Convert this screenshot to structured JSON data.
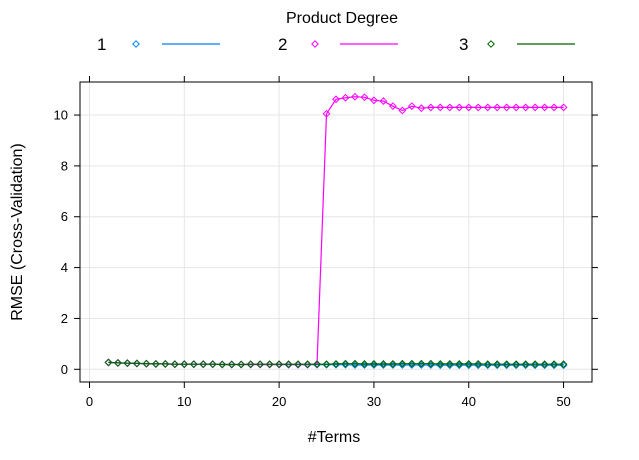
{
  "chart_data": {
    "type": "line",
    "legend_title": "Product Degree",
    "legend_position": "top",
    "xlabel": "#Terms",
    "ylabel": "RMSE (Cross-Validation)",
    "xlim": [
      -1,
      53
    ],
    "ylim": [
      -0.5,
      11.3
    ],
    "xticks": [
      0,
      10,
      20,
      30,
      40,
      50
    ],
    "yticks": [
      0,
      2,
      4,
      6,
      8,
      10
    ],
    "grid": true,
    "x": [
      2,
      3,
      4,
      5,
      6,
      7,
      8,
      9,
      10,
      11,
      12,
      13,
      14,
      15,
      16,
      17,
      18,
      19,
      20,
      21,
      22,
      23,
      24,
      25,
      26,
      27,
      28,
      29,
      30,
      31,
      32,
      33,
      34,
      35,
      36,
      37,
      38,
      39,
      40,
      41,
      42,
      43,
      44,
      45,
      46,
      47,
      48,
      49,
      50
    ],
    "series": [
      {
        "name": "1",
        "color": "#0080ff",
        "values": [
          0.27,
          0.25,
          0.24,
          0.23,
          0.22,
          0.21,
          0.21,
          0.2,
          0.2,
          0.2,
          0.2,
          0.2,
          0.19,
          0.19,
          0.19,
          0.19,
          0.19,
          0.19,
          0.19,
          0.18,
          0.18,
          0.18,
          0.18,
          0.18,
          0.18,
          0.18,
          0.17,
          0.17,
          0.17,
          0.17,
          0.17,
          0.17,
          0.17,
          0.17,
          0.17,
          0.16,
          0.16,
          0.16,
          0.16,
          0.16,
          0.16,
          0.16,
          0.16,
          0.16,
          0.16,
          0.16,
          0.16,
          0.16,
          0.16
        ]
      },
      {
        "name": "2",
        "color": "#ff00ff",
        "values": [
          0.27,
          0.25,
          0.24,
          0.23,
          0.22,
          0.21,
          0.21,
          0.2,
          0.2,
          0.2,
          0.2,
          0.2,
          0.19,
          0.19,
          0.19,
          0.19,
          0.19,
          0.19,
          0.19,
          0.19,
          0.19,
          0.19,
          0.2,
          10.05,
          10.62,
          10.68,
          10.72,
          10.7,
          10.58,
          10.55,
          10.35,
          10.18,
          10.35,
          10.27,
          10.3,
          10.3,
          10.3,
          10.3,
          10.3,
          10.3,
          10.3,
          10.3,
          10.3,
          10.3,
          10.3,
          10.3,
          10.3,
          10.3,
          10.3
        ]
      },
      {
        "name": "3",
        "color": "#006400",
        "values": [
          0.27,
          0.25,
          0.24,
          0.23,
          0.22,
          0.21,
          0.21,
          0.2,
          0.2,
          0.2,
          0.2,
          0.2,
          0.19,
          0.19,
          0.19,
          0.2,
          0.2,
          0.2,
          0.2,
          0.2,
          0.2,
          0.2,
          0.2,
          0.2,
          0.21,
          0.22,
          0.22,
          0.21,
          0.21,
          0.21,
          0.21,
          0.22,
          0.22,
          0.22,
          0.22,
          0.21,
          0.21,
          0.21,
          0.21,
          0.21,
          0.2,
          0.2,
          0.2,
          0.2,
          0.2,
          0.2,
          0.2,
          0.2,
          0.2
        ]
      }
    ]
  }
}
